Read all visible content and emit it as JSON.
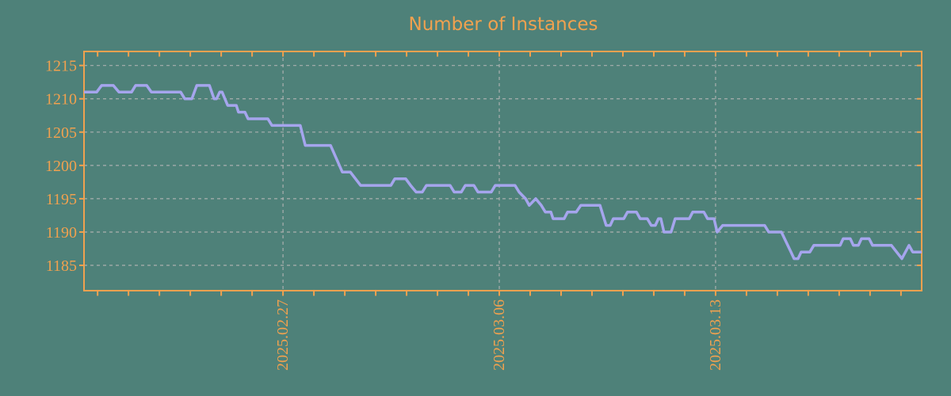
{
  "title": "Number of Instances",
  "colors": {
    "background": "#4e8179",
    "accent_orange": "#f0a14f",
    "line_lavender": "#a5a5ed",
    "grid_gray": "#b5b5b5"
  },
  "chart_data": {
    "type": "line",
    "title": "Number of Instances",
    "grid": true,
    "legend": "none",
    "x_axis": {
      "unit": "days since 2025-02-21",
      "range": [
        -0.44,
        26.67
      ],
      "major_ticks": [
        {
          "t": 6,
          "label": "2025.02.27"
        },
        {
          "t": 13,
          "label": "2025.03.06"
        },
        {
          "t": 20,
          "label": "2025.03.13"
        }
      ],
      "minor_tick_start": 0,
      "minor_tick_interval": 1,
      "minor_tick_count": 27,
      "label_rotation_deg": -90
    },
    "y_axis": {
      "range": [
        1181.2,
        1217.1
      ],
      "ticks": [
        1185,
        1190,
        1195,
        1200,
        1205,
        1210,
        1215
      ]
    },
    "series": [
      {
        "name": "instances",
        "points": [
          [
            -0.44,
            1211
          ],
          [
            -0.03,
            1211
          ],
          [
            0.13,
            1212
          ],
          [
            0.51,
            1212
          ],
          [
            0.69,
            1211
          ],
          [
            1.1,
            1211
          ],
          [
            1.23,
            1212
          ],
          [
            1.59,
            1212
          ],
          [
            1.74,
            1211
          ],
          [
            2.69,
            1211
          ],
          [
            2.82,
            1210
          ],
          [
            3.05,
            1210
          ],
          [
            3.21,
            1212
          ],
          [
            3.62,
            1212
          ],
          [
            3.77,
            1210
          ],
          [
            3.85,
            1210
          ],
          [
            3.95,
            1211
          ],
          [
            4.03,
            1211
          ],
          [
            4.21,
            1209
          ],
          [
            4.49,
            1209
          ],
          [
            4.56,
            1208
          ],
          [
            4.77,
            1208
          ],
          [
            4.87,
            1207
          ],
          [
            5.51,
            1207
          ],
          [
            5.64,
            1206
          ],
          [
            6.56,
            1206
          ],
          [
            6.72,
            1203
          ],
          [
            7.54,
            1203
          ],
          [
            7.92,
            1199
          ],
          [
            8.18,
            1199
          ],
          [
            8.51,
            1197
          ],
          [
            9.49,
            1197
          ],
          [
            9.62,
            1198
          ],
          [
            9.97,
            1198
          ],
          [
            10.13,
            1197
          ],
          [
            10.31,
            1196
          ],
          [
            10.51,
            1196
          ],
          [
            10.64,
            1197
          ],
          [
            11.41,
            1197
          ],
          [
            11.54,
            1196
          ],
          [
            11.77,
            1196
          ],
          [
            11.9,
            1197
          ],
          [
            12.18,
            1197
          ],
          [
            12.31,
            1196
          ],
          [
            12.74,
            1196
          ],
          [
            12.87,
            1197
          ],
          [
            13.51,
            1197
          ],
          [
            13.64,
            1196
          ],
          [
            13.85,
            1195
          ],
          [
            13.97,
            1194
          ],
          [
            14.18,
            1195
          ],
          [
            14.36,
            1194
          ],
          [
            14.49,
            1193
          ],
          [
            14.67,
            1193
          ],
          [
            14.74,
            1192
          ],
          [
            15.1,
            1192
          ],
          [
            15.21,
            1193
          ],
          [
            15.49,
            1193
          ],
          [
            15.64,
            1194
          ],
          [
            16.26,
            1194
          ],
          [
            16.46,
            1191
          ],
          [
            16.59,
            1191
          ],
          [
            16.69,
            1192
          ],
          [
            17.03,
            1192
          ],
          [
            17.15,
            1193
          ],
          [
            17.44,
            1193
          ],
          [
            17.56,
            1192
          ],
          [
            17.79,
            1192
          ],
          [
            17.92,
            1191
          ],
          [
            18.05,
            1191
          ],
          [
            18.15,
            1192
          ],
          [
            18.23,
            1192
          ],
          [
            18.33,
            1190
          ],
          [
            18.56,
            1190
          ],
          [
            18.69,
            1192
          ],
          [
            19.15,
            1192
          ],
          [
            19.26,
            1193
          ],
          [
            19.62,
            1193
          ],
          [
            19.74,
            1192
          ],
          [
            19.95,
            1192
          ],
          [
            20.05,
            1190
          ],
          [
            20.23,
            1191
          ],
          [
            21.59,
            1191
          ],
          [
            21.72,
            1190
          ],
          [
            22.13,
            1190
          ],
          [
            22.44,
            1187
          ],
          [
            22.54,
            1186
          ],
          [
            22.67,
            1186
          ],
          [
            22.77,
            1187
          ],
          [
            23.05,
            1187
          ],
          [
            23.18,
            1188
          ],
          [
            24.03,
            1188
          ],
          [
            24.13,
            1189
          ],
          [
            24.36,
            1189
          ],
          [
            24.46,
            1188
          ],
          [
            24.62,
            1188
          ],
          [
            24.72,
            1189
          ],
          [
            24.97,
            1189
          ],
          [
            25.08,
            1188
          ],
          [
            25.69,
            1188
          ],
          [
            26.03,
            1186
          ],
          [
            26.26,
            1188
          ],
          [
            26.38,
            1187
          ],
          [
            26.67,
            1187
          ]
        ]
      }
    ]
  }
}
